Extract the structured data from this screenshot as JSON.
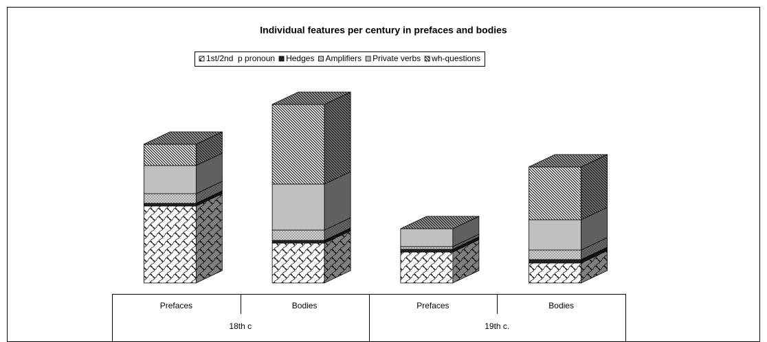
{
  "chart_data": {
    "type": "bar3d_stacked",
    "title": "Individual features per century in prefaces and bodies",
    "categories": [
      "Prefaces",
      "Bodies",
      "Prefaces",
      "Bodies"
    ],
    "groups": [
      "18th c",
      "19th c."
    ],
    "series": [
      {
        "name": "1st/2nd  p pronoun",
        "color": "#ffffff",
        "pattern": "scallop",
        "values": [
          112,
          58,
          45,
          29
        ]
      },
      {
        "name": "Hedges",
        "color": "#222222",
        "pattern": "solid",
        "values": [
          4,
          4,
          4,
          5
        ]
      },
      {
        "name": "Amplifiers",
        "color": "#a6a6a6",
        "pattern": "dots",
        "values": [
          14,
          15,
          4,
          14
        ]
      },
      {
        "name": "Private verbs",
        "color": "#c0c0c0",
        "pattern": "solid",
        "values": [
          41,
          67,
          26,
          44
        ]
      },
      {
        "name": "wh-questions",
        "color": "#ffffff",
        "pattern": "hatch",
        "values": [
          31,
          116,
          0,
          77
        ]
      }
    ],
    "legend": "top"
  }
}
